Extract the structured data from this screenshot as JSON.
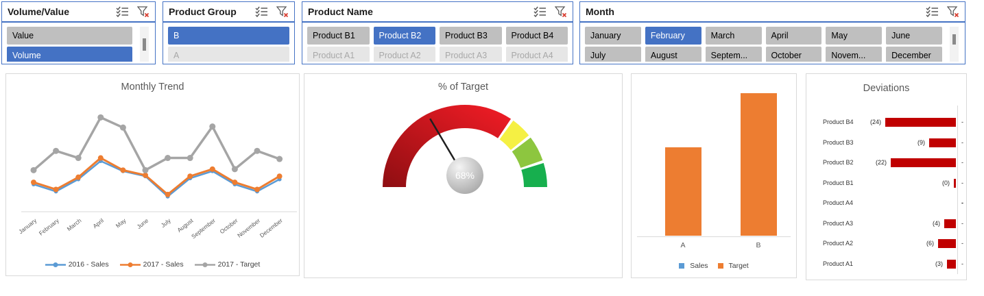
{
  "slicers": [
    {
      "title": "Volume/Value",
      "columns": 1,
      "scrollbar": true,
      "items": [
        {
          "label": "Value",
          "state": "normal"
        },
        {
          "label": "Volume",
          "state": "selected"
        }
      ]
    },
    {
      "title": "Product Group",
      "columns": 1,
      "scrollbar": false,
      "items": [
        {
          "label": "B",
          "state": "selected"
        },
        {
          "label": "A",
          "state": "disabled"
        }
      ]
    },
    {
      "title": "Product Name",
      "columns": 4,
      "scrollbar": false,
      "items": [
        {
          "label": "Product B1",
          "state": "normal"
        },
        {
          "label": "Product B2",
          "state": "selected"
        },
        {
          "label": "Product B3",
          "state": "normal"
        },
        {
          "label": "Product B4",
          "state": "normal"
        },
        {
          "label": "Product A1",
          "state": "disabled"
        },
        {
          "label": "Product A2",
          "state": "disabled"
        },
        {
          "label": "Product A3",
          "state": "disabled"
        },
        {
          "label": "Product A4",
          "state": "disabled"
        }
      ]
    },
    {
      "title": "Month",
      "columns": 6,
      "scrollbar": true,
      "items": [
        {
          "label": "January",
          "state": "normal"
        },
        {
          "label": "February",
          "state": "selected"
        },
        {
          "label": "March",
          "state": "normal"
        },
        {
          "label": "April",
          "state": "normal"
        },
        {
          "label": "May",
          "state": "normal"
        },
        {
          "label": "June",
          "state": "normal"
        },
        {
          "label": "July",
          "state": "normal"
        },
        {
          "label": "August",
          "state": "normal"
        },
        {
          "label": "Septem...",
          "state": "normal"
        },
        {
          "label": "October",
          "state": "normal"
        },
        {
          "label": "Novem...",
          "state": "normal"
        },
        {
          "label": "December",
          "state": "normal"
        }
      ]
    }
  ],
  "colors": {
    "slicer_border": "#4472C4",
    "slicer_selected": "#4472C4",
    "slicer_normal": "#BFBFBF",
    "slicer_disabled": "#E6E6E6",
    "panel_border": "#D9D9D9",
    "title_text": "#595959",
    "series_blue": "#5B9BD5",
    "series_orange": "#ED7D31",
    "series_gray": "#A5A5A5",
    "deviation_red": "#C00000"
  },
  "chart_data": [
    {
      "type": "line",
      "title": "Monthly Trend",
      "categories": [
        "January",
        "February",
        "March",
        "April",
        "May",
        "June",
        "July",
        "August",
        "September",
        "October",
        "November",
        "December"
      ],
      "series": [
        {
          "name": "2016 - Sales",
          "color": "#5B9BD5",
          "width": 2.5,
          "marker_r": 3,
          "values": [
            27,
            20,
            32,
            50,
            40,
            35,
            15,
            33,
            40,
            27,
            20,
            32
          ]
        },
        {
          "name": "2017 - Sales",
          "color": "#ED7D31",
          "width": 3,
          "marker_r": 4,
          "values": [
            29,
            22,
            34,
            53,
            41,
            36,
            17,
            35,
            42,
            29,
            22,
            35
          ]
        },
        {
          "name": "2017 - Target",
          "color": "#A5A5A5",
          "width": 3.5,
          "marker_r": 4.5,
          "values": [
            41,
            60,
            53,
            93,
            83,
            41,
            53,
            53,
            84,
            42,
            60,
            52
          ]
        }
      ],
      "xlabel": "",
      "ylabel": "",
      "ylim": [
        0,
        100
      ],
      "grid": false,
      "legend_position": "bottom"
    },
    {
      "type": "pie",
      "subtype": "gauge",
      "title": "% of Target",
      "value_label": "68%",
      "needle_deg": 63,
      "segments": [
        {
          "from": 0,
          "to": 124,
          "color": "#E02126",
          "gradient": true
        },
        {
          "from": 126,
          "to": 141,
          "color": "#F5F043"
        },
        {
          "from": 143,
          "to": 161,
          "color": "#8DC63F"
        },
        {
          "from": 163,
          "to": 180,
          "color": "#17AF4E"
        }
      ]
    },
    {
      "type": "bar",
      "categories": [
        "A",
        "B"
      ],
      "series": [
        {
          "name": "Sales",
          "color": "#5B9BD5",
          "values": [
            0,
            0
          ]
        },
        {
          "name": "Target",
          "color": "#ED7D31",
          "values": [
            57,
            92
          ]
        }
      ],
      "title": "",
      "xlabel": "",
      "ylabel": "",
      "ylim": [
        0,
        105
      ],
      "legend_position": "bottom"
    },
    {
      "type": "bar",
      "subtype": "horizontal-negative",
      "title": "Deviations",
      "bar_color": "#C00000",
      "rows": [
        {
          "label": "Product B4",
          "value": -24,
          "value_label": "(24)",
          "dash": "-"
        },
        {
          "label": "Product B3",
          "value": -9,
          "value_label": "(9)",
          "dash": "-"
        },
        {
          "label": "Product B2",
          "value": -22,
          "value_label": "(22)",
          "dash": "-"
        },
        {
          "label": "Product B1",
          "value": 0,
          "value_label": "(0)",
          "dash": "-"
        },
        {
          "label": "Product A4",
          "value": null,
          "value_label": "",
          "dash": "-",
          "dash_bold": true
        },
        {
          "label": "Product A3",
          "value": -4,
          "value_label": "(4)",
          "dash": "-"
        },
        {
          "label": "Product A2",
          "value": -6,
          "value_label": "(6)",
          "dash": "-"
        },
        {
          "label": "Product A1",
          "value": -3,
          "value_label": "(3)",
          "dash": "-"
        }
      ]
    }
  ]
}
